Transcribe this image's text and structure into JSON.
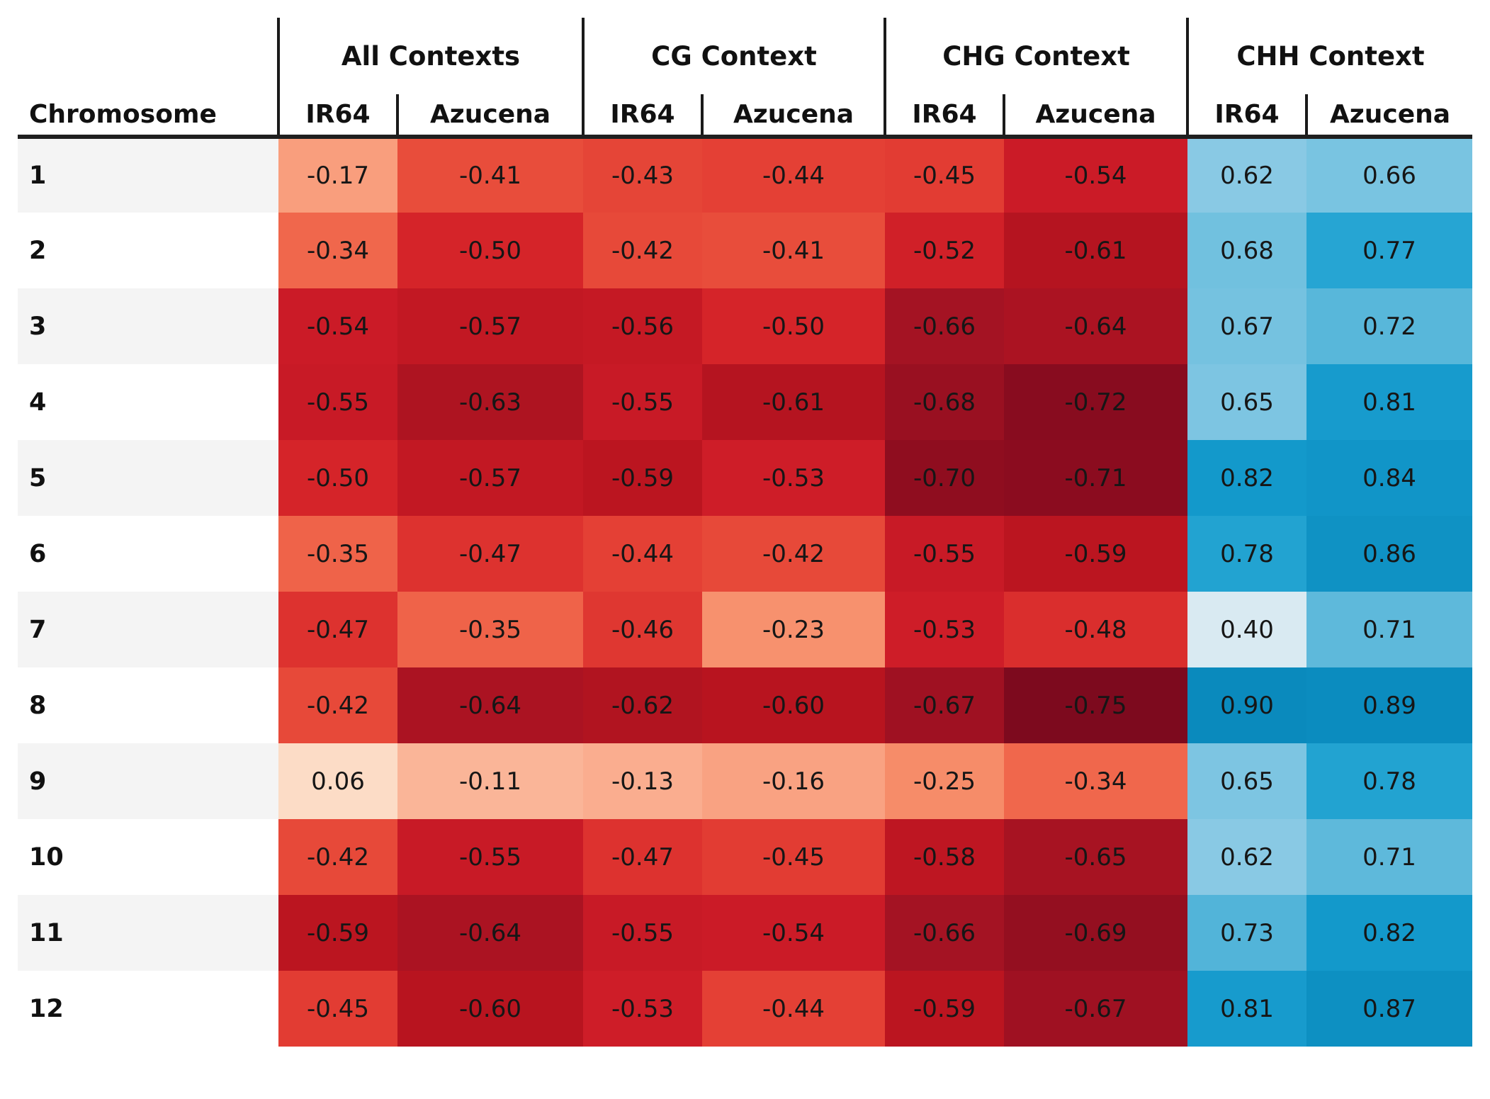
{
  "table": {
    "row_header_label": "Chromosome"
  },
  "colors": {
    "grid_line": "#1a1a1a",
    "header_rule": "#1f1f1f",
    "row_stripe": "#f4f4f4",
    "cell_text": "#161616",
    "background": "#ffffff"
  },
  "chart_data": {
    "type": "heatmap",
    "title": "",
    "row_axis_label": "Chromosome",
    "rows": [
      "1",
      "2",
      "3",
      "4",
      "5",
      "6",
      "7",
      "8",
      "9",
      "10",
      "11",
      "12"
    ],
    "column_groups": [
      {
        "label": "All Contexts",
        "columns": [
          "IR64",
          "Azucena"
        ]
      },
      {
        "label": "CG Context",
        "columns": [
          "IR64",
          "Azucena"
        ]
      },
      {
        "label": "CHG Context",
        "columns": [
          "IR64",
          "Azucena"
        ]
      },
      {
        "label": "CHH Context",
        "columns": [
          "IR64",
          "Azucena"
        ]
      }
    ],
    "values": [
      [
        -0.17,
        -0.41,
        -0.43,
        -0.44,
        -0.45,
        -0.54,
        0.62,
        0.66
      ],
      [
        -0.34,
        -0.5,
        -0.42,
        -0.41,
        -0.52,
        -0.61,
        0.68,
        0.77
      ],
      [
        -0.54,
        -0.57,
        -0.56,
        -0.5,
        -0.66,
        -0.64,
        0.67,
        0.72
      ],
      [
        -0.55,
        -0.63,
        -0.55,
        -0.61,
        -0.68,
        -0.72,
        0.65,
        0.81
      ],
      [
        -0.5,
        -0.57,
        -0.59,
        -0.53,
        -0.7,
        -0.71,
        0.82,
        0.84
      ],
      [
        -0.35,
        -0.47,
        -0.44,
        -0.42,
        -0.55,
        -0.59,
        0.78,
        0.86
      ],
      [
        -0.47,
        -0.35,
        -0.46,
        -0.23,
        -0.53,
        -0.48,
        0.4,
        0.71
      ],
      [
        -0.42,
        -0.64,
        -0.62,
        -0.6,
        -0.67,
        -0.75,
        0.9,
        0.89
      ],
      [
        0.06,
        -0.11,
        -0.13,
        -0.16,
        -0.25,
        -0.34,
        0.65,
        0.78
      ],
      [
        -0.42,
        -0.55,
        -0.47,
        -0.45,
        -0.58,
        -0.65,
        0.62,
        0.71
      ],
      [
        -0.59,
        -0.64,
        -0.55,
        -0.54,
        -0.66,
        -0.69,
        0.73,
        0.82
      ],
      [
        -0.45,
        -0.6,
        -0.53,
        -0.44,
        -0.59,
        -0.67,
        0.81,
        0.87
      ]
    ],
    "value_range": [
      -0.75,
      0.9
    ],
    "legend_position": "none",
    "grid": false,
    "palette_stops": [
      [
        -0.75,
        "#7d0a1e"
      ],
      [
        -0.7,
        "#8f0d1f"
      ],
      [
        -0.66,
        "#a41323"
      ],
      [
        -0.6,
        "#b8141f"
      ],
      [
        -0.54,
        "#cb1b27"
      ],
      [
        -0.5,
        "#d52429"
      ],
      [
        -0.45,
        "#e23c33"
      ],
      [
        -0.42,
        "#e74939"
      ],
      [
        -0.35,
        "#ef6349"
      ],
      [
        -0.25,
        "#f68c69"
      ],
      [
        -0.17,
        "#f99e7d"
      ],
      [
        -0.11,
        "#fab598"
      ],
      [
        0.06,
        "#fcdcc6"
      ],
      [
        0.22,
        "#f1f1ef"
      ],
      [
        0.4,
        "#d9eaf2"
      ],
      [
        0.52,
        "#b0dcec"
      ],
      [
        0.62,
        "#89c9e4"
      ],
      [
        0.68,
        "#71c1df"
      ],
      [
        0.73,
        "#52b4d9"
      ],
      [
        0.77,
        "#26a5d3"
      ],
      [
        0.82,
        "#1399cb"
      ],
      [
        0.9,
        "#0a8abd"
      ]
    ]
  }
}
